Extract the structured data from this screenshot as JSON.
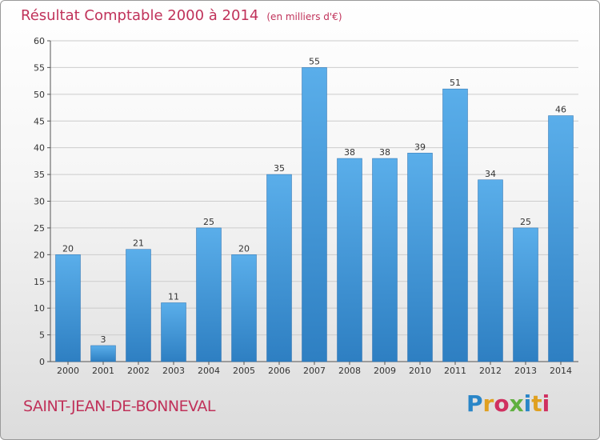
{
  "title": "Résultat Comptable 2000 à 2014",
  "subtitle": "(en milliers d'€)",
  "place": "SAINT-JEAN-DE-BONNEVAL",
  "logo": {
    "letters": [
      "P",
      "r",
      "o",
      "x",
      "i",
      "t",
      "i"
    ],
    "colors": [
      "#2a86c8",
      "#e0a020",
      "#d03060",
      "#60b040",
      "#2a86c8",
      "#e0a020",
      "#d03060"
    ]
  },
  "colors": {
    "bar": "#4a9fe0",
    "bar_dark": "#2e7fc2",
    "grid": "#cccccc",
    "title": "#c0325a"
  },
  "chart_data": {
    "type": "bar",
    "title": "Résultat Comptable 2000 à 2014",
    "ylabel": "en milliers d'€",
    "categories": [
      "2000",
      "2001",
      "2002",
      "2003",
      "2004",
      "2005",
      "2006",
      "2007",
      "2008",
      "2009",
      "2010",
      "2011",
      "2012",
      "2013",
      "2014"
    ],
    "values": [
      20,
      3,
      21,
      11,
      25,
      20,
      35,
      55,
      38,
      38,
      39,
      51,
      34,
      25,
      46
    ],
    "ylim": [
      0,
      60
    ],
    "yticks": [
      0,
      5,
      10,
      15,
      20,
      25,
      30,
      35,
      40,
      45,
      50,
      55,
      60
    ],
    "grid": true
  }
}
